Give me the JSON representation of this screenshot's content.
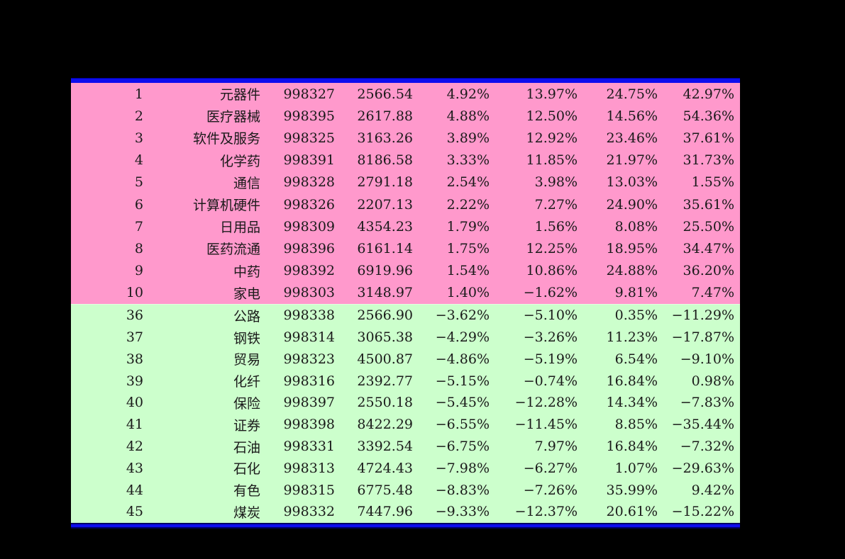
{
  "colors": {
    "page_background": "#000000",
    "top_border_blue": "#0d0dee",
    "bottom_border_blue": "#0d0dee",
    "gainers_row_pink": "#ff99cc",
    "losers_row_green": "#ccffcc",
    "text": "#1a1a1a"
  },
  "chart_data": {
    "type": "table",
    "grid": false,
    "headers_visible": false,
    "column_keys": [
      "rank",
      "sector",
      "code",
      "value",
      "pct1",
      "pct2",
      "pct3",
      "pct4"
    ],
    "sections": [
      {
        "name": "top-gainers",
        "background": "#ff99cc",
        "rows": [
          {
            "rank": "1",
            "sector": "元器件",
            "code": "998327",
            "value": "2566.54",
            "pct1": "4.92%",
            "pct2": "13.97%",
            "pct3": "24.75%",
            "pct4": "42.97%"
          },
          {
            "rank": "2",
            "sector": "医疗器械",
            "code": "998395",
            "value": "2617.88",
            "pct1": "4.88%",
            "pct2": "12.50%",
            "pct3": "14.56%",
            "pct4": "54.36%"
          },
          {
            "rank": "3",
            "sector": "软件及服务",
            "code": "998325",
            "value": "3163.26",
            "pct1": "3.89%",
            "pct2": "12.92%",
            "pct3": "23.46%",
            "pct4": "37.61%"
          },
          {
            "rank": "4",
            "sector": "化学药",
            "code": "998391",
            "value": "8186.58",
            "pct1": "3.33%",
            "pct2": "11.85%",
            "pct3": "21.97%",
            "pct4": "31.73%"
          },
          {
            "rank": "5",
            "sector": "通信",
            "code": "998328",
            "value": "2791.18",
            "pct1": "2.54%",
            "pct2": "3.98%",
            "pct3": "13.03%",
            "pct4": "1.55%"
          },
          {
            "rank": "6",
            "sector": "计算机硬件",
            "code": "998326",
            "value": "2207.13",
            "pct1": "2.22%",
            "pct2": "7.27%",
            "pct3": "24.90%",
            "pct4": "35.61%"
          },
          {
            "rank": "7",
            "sector": "日用品",
            "code": "998309",
            "value": "4354.23",
            "pct1": "1.79%",
            "pct2": "1.56%",
            "pct3": "8.08%",
            "pct4": "25.50%"
          },
          {
            "rank": "8",
            "sector": "医药流通",
            "code": "998396",
            "value": "6161.14",
            "pct1": "1.75%",
            "pct2": "12.25%",
            "pct3": "18.95%",
            "pct4": "34.47%"
          },
          {
            "rank": "9",
            "sector": "中药",
            "code": "998392",
            "value": "6919.96",
            "pct1": "1.54%",
            "pct2": "10.86%",
            "pct3": "24.88%",
            "pct4": "36.20%"
          },
          {
            "rank": "10",
            "sector": "家电",
            "code": "998303",
            "value": "3148.97",
            "pct1": "1.40%",
            "pct2": "−1.62%",
            "pct3": "9.81%",
            "pct4": "7.47%"
          }
        ]
      },
      {
        "name": "top-losers",
        "background": "#ccffcc",
        "rows": [
          {
            "rank": "36",
            "sector": "公路",
            "code": "998338",
            "value": "2566.90",
            "pct1": "−3.62%",
            "pct2": "−5.10%",
            "pct3": "0.35%",
            "pct4": "−11.29%"
          },
          {
            "rank": "37",
            "sector": "钢铁",
            "code": "998314",
            "value": "3065.38",
            "pct1": "−4.29%",
            "pct2": "−3.26%",
            "pct3": "11.23%",
            "pct4": "−17.87%"
          },
          {
            "rank": "38",
            "sector": "贸易",
            "code": "998323",
            "value": "4500.87",
            "pct1": "−4.86%",
            "pct2": "−5.19%",
            "pct3": "6.54%",
            "pct4": "−9.10%"
          },
          {
            "rank": "39",
            "sector": "化纤",
            "code": "998316",
            "value": "2392.77",
            "pct1": "−5.15%",
            "pct2": "−0.74%",
            "pct3": "16.84%",
            "pct4": "0.98%"
          },
          {
            "rank": "40",
            "sector": "保险",
            "code": "998397",
            "value": "2550.18",
            "pct1": "−5.45%",
            "pct2": "−12.28%",
            "pct3": "14.34%",
            "pct4": "−7.83%"
          },
          {
            "rank": "41",
            "sector": "证券",
            "code": "998398",
            "value": "8422.29",
            "pct1": "−6.55%",
            "pct2": "−11.45%",
            "pct3": "8.85%",
            "pct4": "−35.44%"
          },
          {
            "rank": "42",
            "sector": "石油",
            "code": "998331",
            "value": "3392.54",
            "pct1": "−6.75%",
            "pct2": "7.97%",
            "pct3": "16.84%",
            "pct4": "−7.32%"
          },
          {
            "rank": "43",
            "sector": "石化",
            "code": "998313",
            "value": "4724.43",
            "pct1": "−7.98%",
            "pct2": "−6.27%",
            "pct3": "1.07%",
            "pct4": "−29.63%"
          },
          {
            "rank": "44",
            "sector": "有色",
            "code": "998315",
            "value": "6775.48",
            "pct1": "−8.83%",
            "pct2": "−7.26%",
            "pct3": "35.99%",
            "pct4": "9.42%"
          },
          {
            "rank": "45",
            "sector": "煤炭",
            "code": "998332",
            "value": "7447.96",
            "pct1": "−9.33%",
            "pct2": "−12.37%",
            "pct3": "20.61%",
            "pct4": "−15.22%"
          }
        ]
      }
    ]
  }
}
